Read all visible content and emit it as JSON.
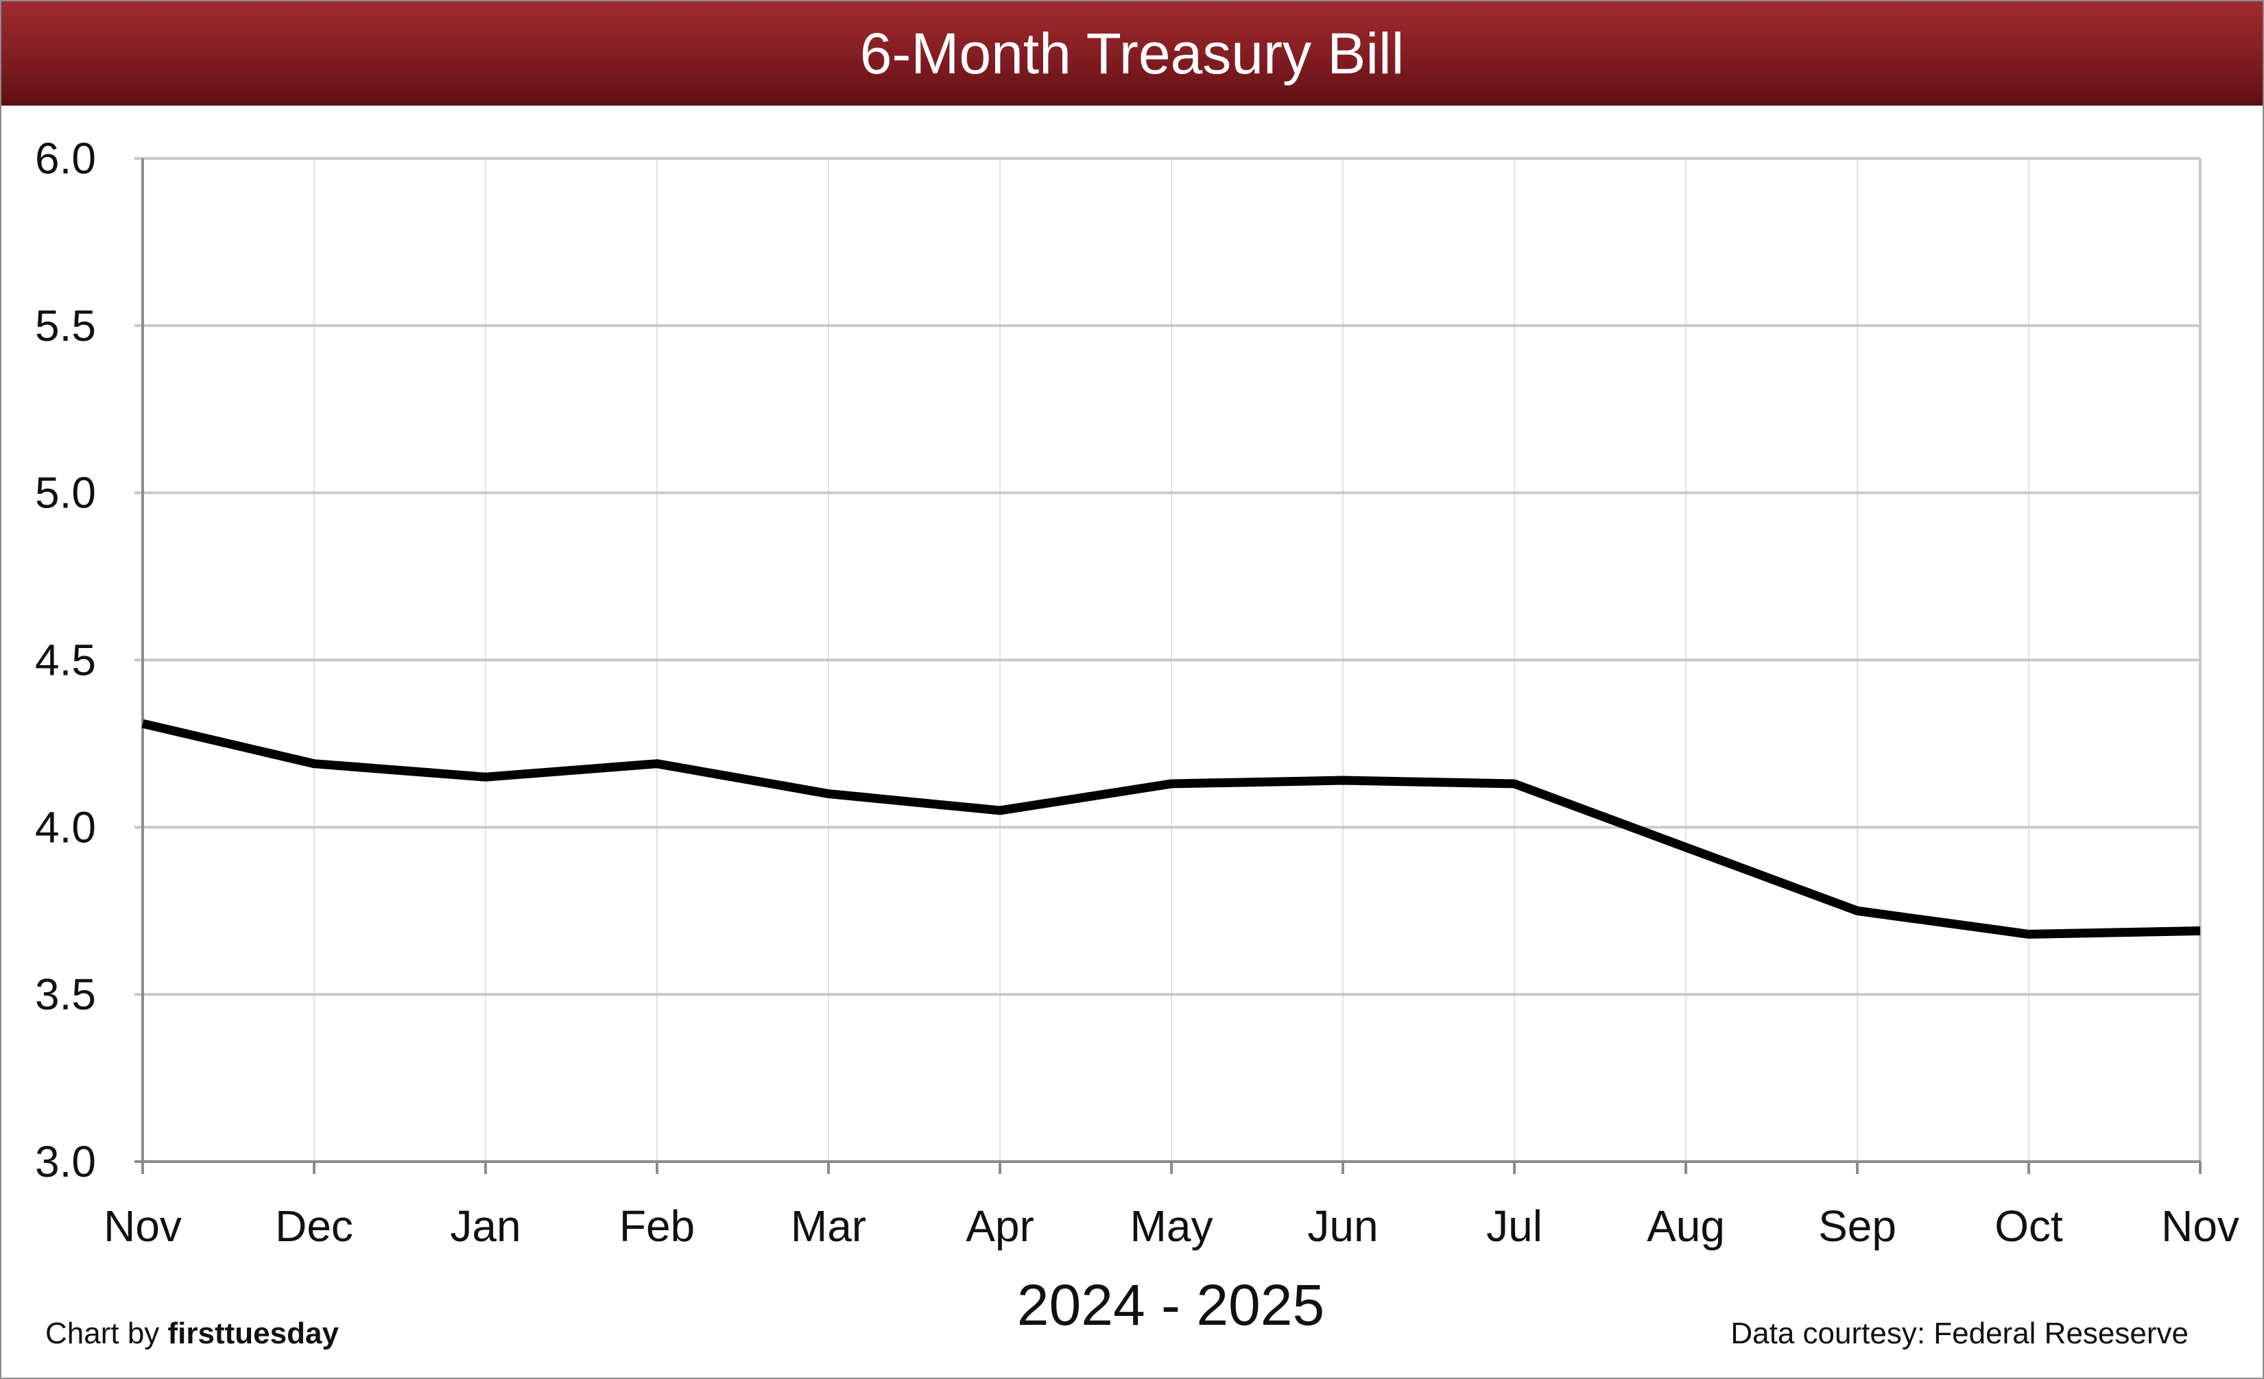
{
  "title": "6-Month Treasury Bill",
  "footer": {
    "credit_prefix": "Chart by",
    "credit_brand": "firsttuesday",
    "source": "Data courtesy: Federal Reseserve"
  },
  "colors": {
    "title_bar": "#8b2126",
    "line": "#000000",
    "grid": "#c8c8c8"
  },
  "chart_data": {
    "type": "line",
    "title": "6-Month Treasury Bill",
    "xlabel": "2024 - 2025",
    "ylabel": "",
    "categories": [
      "Nov",
      "Dec",
      "Jan",
      "Feb",
      "Mar",
      "Apr",
      "May",
      "Jun",
      "Jul",
      "Aug",
      "Sep",
      "Oct",
      "Nov"
    ],
    "series": [
      {
        "values": [
          4.31,
          4.19,
          4.15,
          4.19,
          4.1,
          4.05,
          4.13,
          4.14,
          4.13,
          3.94,
          3.75,
          3.68,
          3.69
        ]
      }
    ],
    "ylim": [
      3.0,
      6.0
    ],
    "yticks": [
      "3.0",
      "3.5",
      "4.0",
      "4.5",
      "5.0",
      "5.5",
      "6.0"
    ],
    "grid": true,
    "legend": "none"
  }
}
